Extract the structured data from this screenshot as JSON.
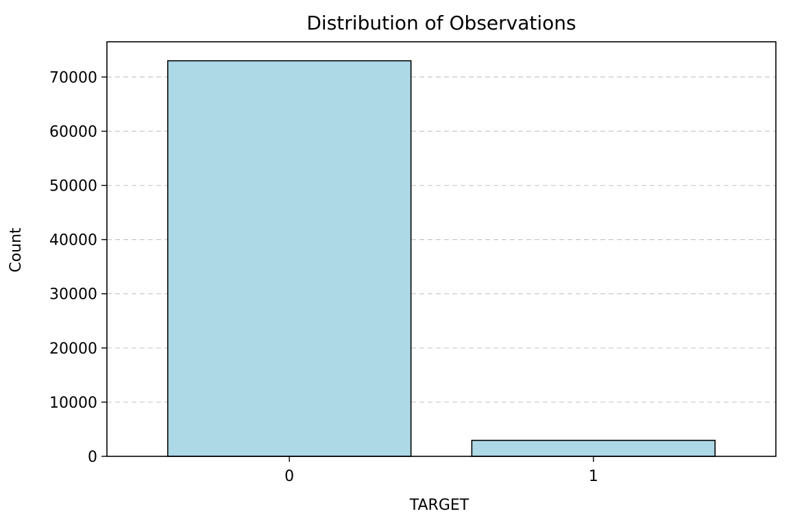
{
  "chart_data": {
    "type": "bar",
    "title": "Distribution of Observations",
    "xlabel": "TARGET",
    "ylabel": "Count",
    "categories": [
      "0",
      "1"
    ],
    "values": [
      73000,
      2950
    ],
    "ylim": [
      0,
      76500
    ],
    "yticks": [
      0,
      10000,
      20000,
      30000,
      40000,
      50000,
      60000,
      70000
    ],
    "ytick_labels": [
      "0",
      "10000",
      "20000",
      "30000",
      "40000",
      "50000",
      "60000",
      "70000"
    ],
    "grid": "y-dashed",
    "bar_color": "#add8e6",
    "bar_edge_color": "#000000",
    "grid_color": "#c8c8c8"
  }
}
